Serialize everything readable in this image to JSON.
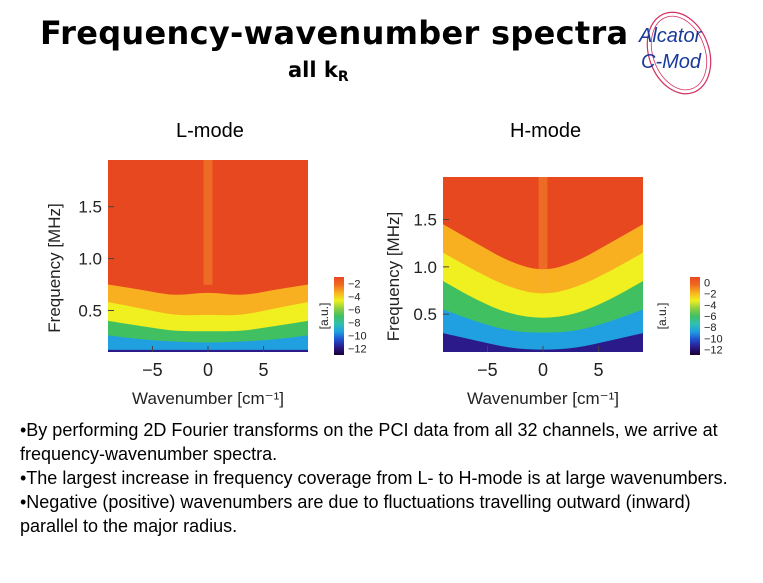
{
  "title": "Frequency-wavenumber spectra",
  "subtitle": {
    "text": "all k",
    "subscript": "R"
  },
  "logo": {
    "line1": "Alcator",
    "line2": "C-Mod",
    "color": "#1a3a9a",
    "ring_color": "#d43060"
  },
  "chart_data": [
    {
      "type": "heatmap",
      "title": "L-mode",
      "xlabel": "Wavenumber [cm⁻¹]",
      "ylabel": "Frequency [MHz]",
      "xlim": [
        -9,
        9
      ],
      "ylim": [
        0.1,
        1.95
      ],
      "x_ticks": [
        -5,
        0,
        5
      ],
      "x_tick_labels": [
        "−5",
        "0",
        "5"
      ],
      "y_ticks": [
        0.5,
        1.0,
        1.5
      ],
      "y_tick_labels": [
        "0.5",
        "1.0",
        "1.5"
      ],
      "colorbar": {
        "label": "[a.u.]",
        "range": [
          -13,
          -1
        ],
        "ticks": [
          -2,
          -4,
          -6,
          -8,
          -10,
          -12
        ],
        "tick_labels": [
          "−2",
          "−4",
          "−6",
          "−8",
          "−10",
          "−12"
        ]
      },
      "colormap": [
        "#1a0033",
        "#2a1a8a",
        "#2050d0",
        "#20a0e0",
        "#30c0b0",
        "#40c060",
        "#90d040",
        "#f0f020",
        "#f8b020",
        "#f06a20",
        "#e84820"
      ],
      "contours": [
        {
          "label": "-13 to -11 (dark blue)",
          "x": [
            -9,
            -6,
            -3,
            0,
            3,
            6,
            9
          ],
          "y": [
            0.12,
            0.12,
            0.12,
            0.12,
            0.12,
            0.12,
            0.12
          ]
        },
        {
          "label": "cyan edge",
          "x": [
            -9,
            -6,
            -3,
            0,
            3,
            6,
            9
          ],
          "y": [
            0.26,
            0.22,
            0.2,
            0.19,
            0.2,
            0.22,
            0.26
          ]
        },
        {
          "label": "green edge",
          "x": [
            -9,
            -6,
            -3,
            0,
            3,
            6,
            9
          ],
          "y": [
            0.4,
            0.35,
            0.3,
            0.3,
            0.3,
            0.35,
            0.4
          ]
        },
        {
          "label": "yellow edge",
          "x": [
            -9,
            -6,
            -3,
            0,
            3,
            6,
            9
          ],
          "y": [
            0.58,
            0.52,
            0.45,
            0.46,
            0.45,
            0.52,
            0.58
          ]
        },
        {
          "label": "orange edge",
          "x": [
            -9,
            -6,
            -3,
            0,
            3,
            6,
            9
          ],
          "y": [
            0.75,
            0.7,
            0.64,
            0.68,
            0.64,
            0.7,
            0.75
          ]
        }
      ]
    },
    {
      "type": "heatmap",
      "title": "H-mode",
      "xlabel": "Wavenumber [cm⁻¹]",
      "ylabel": "Frequency [MHz]",
      "xlim": [
        -9,
        9
      ],
      "ylim": [
        0.1,
        1.95
      ],
      "x_ticks": [
        -5,
        0,
        5
      ],
      "x_tick_labels": [
        "−5",
        "0",
        "5"
      ],
      "y_ticks": [
        0.5,
        1.0,
        1.5
      ],
      "y_tick_labels": [
        "0.5",
        "1.0",
        "1.5"
      ],
      "colorbar": {
        "label": "[a.u.]",
        "range": [
          -13,
          1
        ],
        "ticks": [
          0,
          -2,
          -4,
          -6,
          -8,
          -10,
          -12
        ],
        "tick_labels": [
          "0",
          "−2",
          "−4",
          "−6",
          "−8",
          "−10",
          "−12"
        ]
      },
      "colormap": [
        "#1a0033",
        "#2a1a8a",
        "#2050d0",
        "#20a0e0",
        "#30c0b0",
        "#40c060",
        "#90d040",
        "#f0f020",
        "#f8b020",
        "#f06a20",
        "#e84820"
      ],
      "contours": [
        {
          "label": "-13 to -11 (dark blue)",
          "x": [
            -9,
            -6,
            -3,
            0,
            3,
            6,
            9
          ],
          "y": [
            0.3,
            0.22,
            0.14,
            0.12,
            0.14,
            0.22,
            0.3
          ]
        },
        {
          "label": "cyan edge",
          "x": [
            -9,
            -6,
            -3,
            0,
            3,
            6,
            9
          ],
          "y": [
            0.55,
            0.42,
            0.32,
            0.3,
            0.32,
            0.42,
            0.55
          ]
        },
        {
          "label": "green edge",
          "x": [
            -9,
            -6,
            -3,
            0,
            3,
            6,
            9
          ],
          "y": [
            0.85,
            0.65,
            0.5,
            0.45,
            0.5,
            0.65,
            0.85
          ]
        },
        {
          "label": "yellow edge",
          "x": [
            -9,
            -6,
            -3,
            0,
            3,
            6,
            9
          ],
          "y": [
            1.15,
            0.95,
            0.78,
            0.7,
            0.78,
            0.95,
            1.15
          ]
        },
        {
          "label": "orange edge",
          "x": [
            -9,
            -6,
            -3,
            0,
            3,
            6,
            9
          ],
          "y": [
            1.45,
            1.25,
            1.05,
            0.95,
            1.05,
            1.25,
            1.45
          ]
        }
      ]
    }
  ],
  "bullets": [
    "•By performing 2D Fourier transforms on the PCI data from all 32 channels, we arrive at frequency-wavenumber spectra.",
    "•The largest increase in frequency coverage from L- to H-mode is at large wavenumbers.",
    "•Negative (positive) wavenumbers are due to fluctuations travelling outward (inward) parallel to the major radius."
  ]
}
